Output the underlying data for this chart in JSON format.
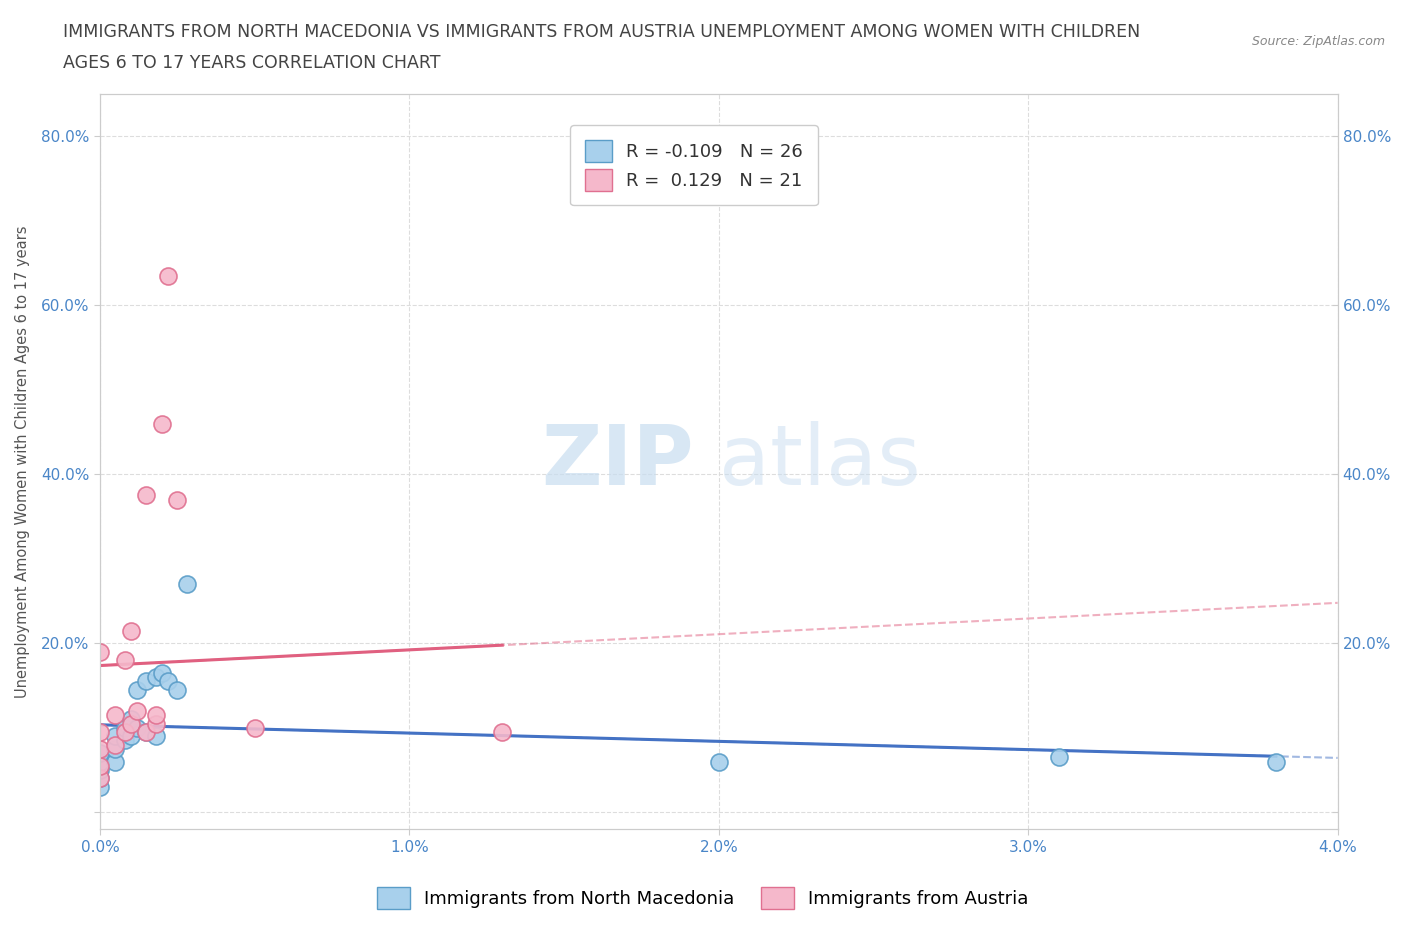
{
  "title_line1": "IMMIGRANTS FROM NORTH MACEDONIA VS IMMIGRANTS FROM AUSTRIA UNEMPLOYMENT AMONG WOMEN WITH CHILDREN",
  "title_line2": "AGES 6 TO 17 YEARS CORRELATION CHART",
  "source": "Source: ZipAtlas.com",
  "ylabel": "Unemployment Among Women with Children Ages 6 to 17 years",
  "xlim": [
    0.0,
    0.04
  ],
  "ylim": [
    -0.02,
    0.85
  ],
  "x_ticks": [
    0.0,
    0.01,
    0.02,
    0.03,
    0.04
  ],
  "x_tick_labels": [
    "0.0%",
    "1.0%",
    "2.0%",
    "3.0%",
    "4.0%"
  ],
  "y_ticks": [
    0.0,
    0.2,
    0.4,
    0.6,
    0.8
  ],
  "y_tick_labels": [
    "",
    "20.0%",
    "40.0%",
    "60.0%",
    "80.0%"
  ],
  "blue_color": "#a8d0ec",
  "pink_color": "#f5b8cb",
  "blue_edge": "#5a9dc8",
  "pink_edge": "#e07090",
  "trend_blue_color": "#4472c4",
  "trend_pink_color": "#e06080",
  "R_blue": -0.109,
  "N_blue": 26,
  "R_pink": 0.129,
  "N_pink": 21,
  "legend_label_blue": "Immigrants from North Macedonia",
  "legend_label_pink": "Immigrants from Austria",
  "watermark_zip": "ZIP",
  "watermark_atlas": "atlas",
  "blue_x": [
    0.0,
    0.0,
    0.0,
    0.0,
    0.0,
    0.0,
    0.0005,
    0.0005,
    0.0005,
    0.0008,
    0.0008,
    0.001,
    0.001,
    0.0012,
    0.0012,
    0.0015,
    0.0015,
    0.0018,
    0.0018,
    0.002,
    0.0022,
    0.0025,
    0.0028,
    0.02,
    0.031,
    0.038
  ],
  "blue_y": [
    0.03,
    0.04,
    0.05,
    0.055,
    0.06,
    0.07,
    0.06,
    0.075,
    0.09,
    0.085,
    0.1,
    0.09,
    0.11,
    0.1,
    0.145,
    0.095,
    0.155,
    0.09,
    0.16,
    0.165,
    0.155,
    0.145,
    0.27,
    0.06,
    0.065,
    0.06
  ],
  "pink_x": [
    0.0,
    0.0,
    0.0,
    0.0,
    0.0,
    0.0005,
    0.0005,
    0.0008,
    0.0008,
    0.001,
    0.001,
    0.0012,
    0.0015,
    0.0015,
    0.0018,
    0.0018,
    0.002,
    0.0022,
    0.0025,
    0.005,
    0.013
  ],
  "pink_y": [
    0.04,
    0.055,
    0.075,
    0.095,
    0.19,
    0.08,
    0.115,
    0.095,
    0.18,
    0.105,
    0.215,
    0.12,
    0.095,
    0.375,
    0.105,
    0.115,
    0.46,
    0.635,
    0.37,
    0.1,
    0.095
  ],
  "background_color": "#ffffff",
  "grid_color": "#dddddd",
  "title_fontsize": 12.5,
  "axis_label_fontsize": 10.5,
  "tick_fontsize": 11,
  "legend_fontsize": 13
}
